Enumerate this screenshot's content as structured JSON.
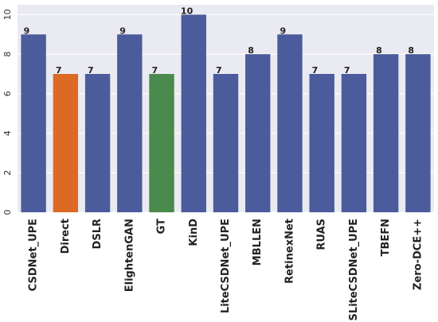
{
  "chart_data": {
    "type": "bar",
    "categories": [
      "CSDNet_UPE",
      "Direct",
      "DSLR",
      "ElightenGAN",
      "GT",
      "KinD",
      "LiteCSDNet_UPE",
      "MBLLEN",
      "RetinexNet",
      "RUAS",
      "SLiteCSDNet_UPE",
      "TBEFN",
      "Zero-DCE++"
    ],
    "values": [
      9,
      7,
      7,
      9,
      7,
      10,
      7,
      8,
      9,
      7,
      7,
      8,
      8
    ],
    "data_labels": [
      "9",
      "7",
      "7",
      "9",
      "7",
      "10",
      "7",
      "8",
      "9",
      "7",
      "7",
      "8",
      "8"
    ],
    "colors": [
      "#4c5b9b",
      "#dd6a24",
      "#4c5b9b",
      "#4c5b9b",
      "#4a8a4c",
      "#4c5b9b",
      "#4c5b9b",
      "#4c5b9b",
      "#4c5b9b",
      "#4c5b9b",
      "#4c5b9b",
      "#4c5b9b",
      "#4c5b9b"
    ],
    "title": "",
    "xlabel": "",
    "ylabel": "",
    "ylim": [
      0,
      10.5
    ],
    "yticks": [
      0,
      2,
      4,
      6,
      8,
      10
    ],
    "grid": true,
    "background": "#eaeaf2",
    "grid_color": "#ffffff"
  }
}
